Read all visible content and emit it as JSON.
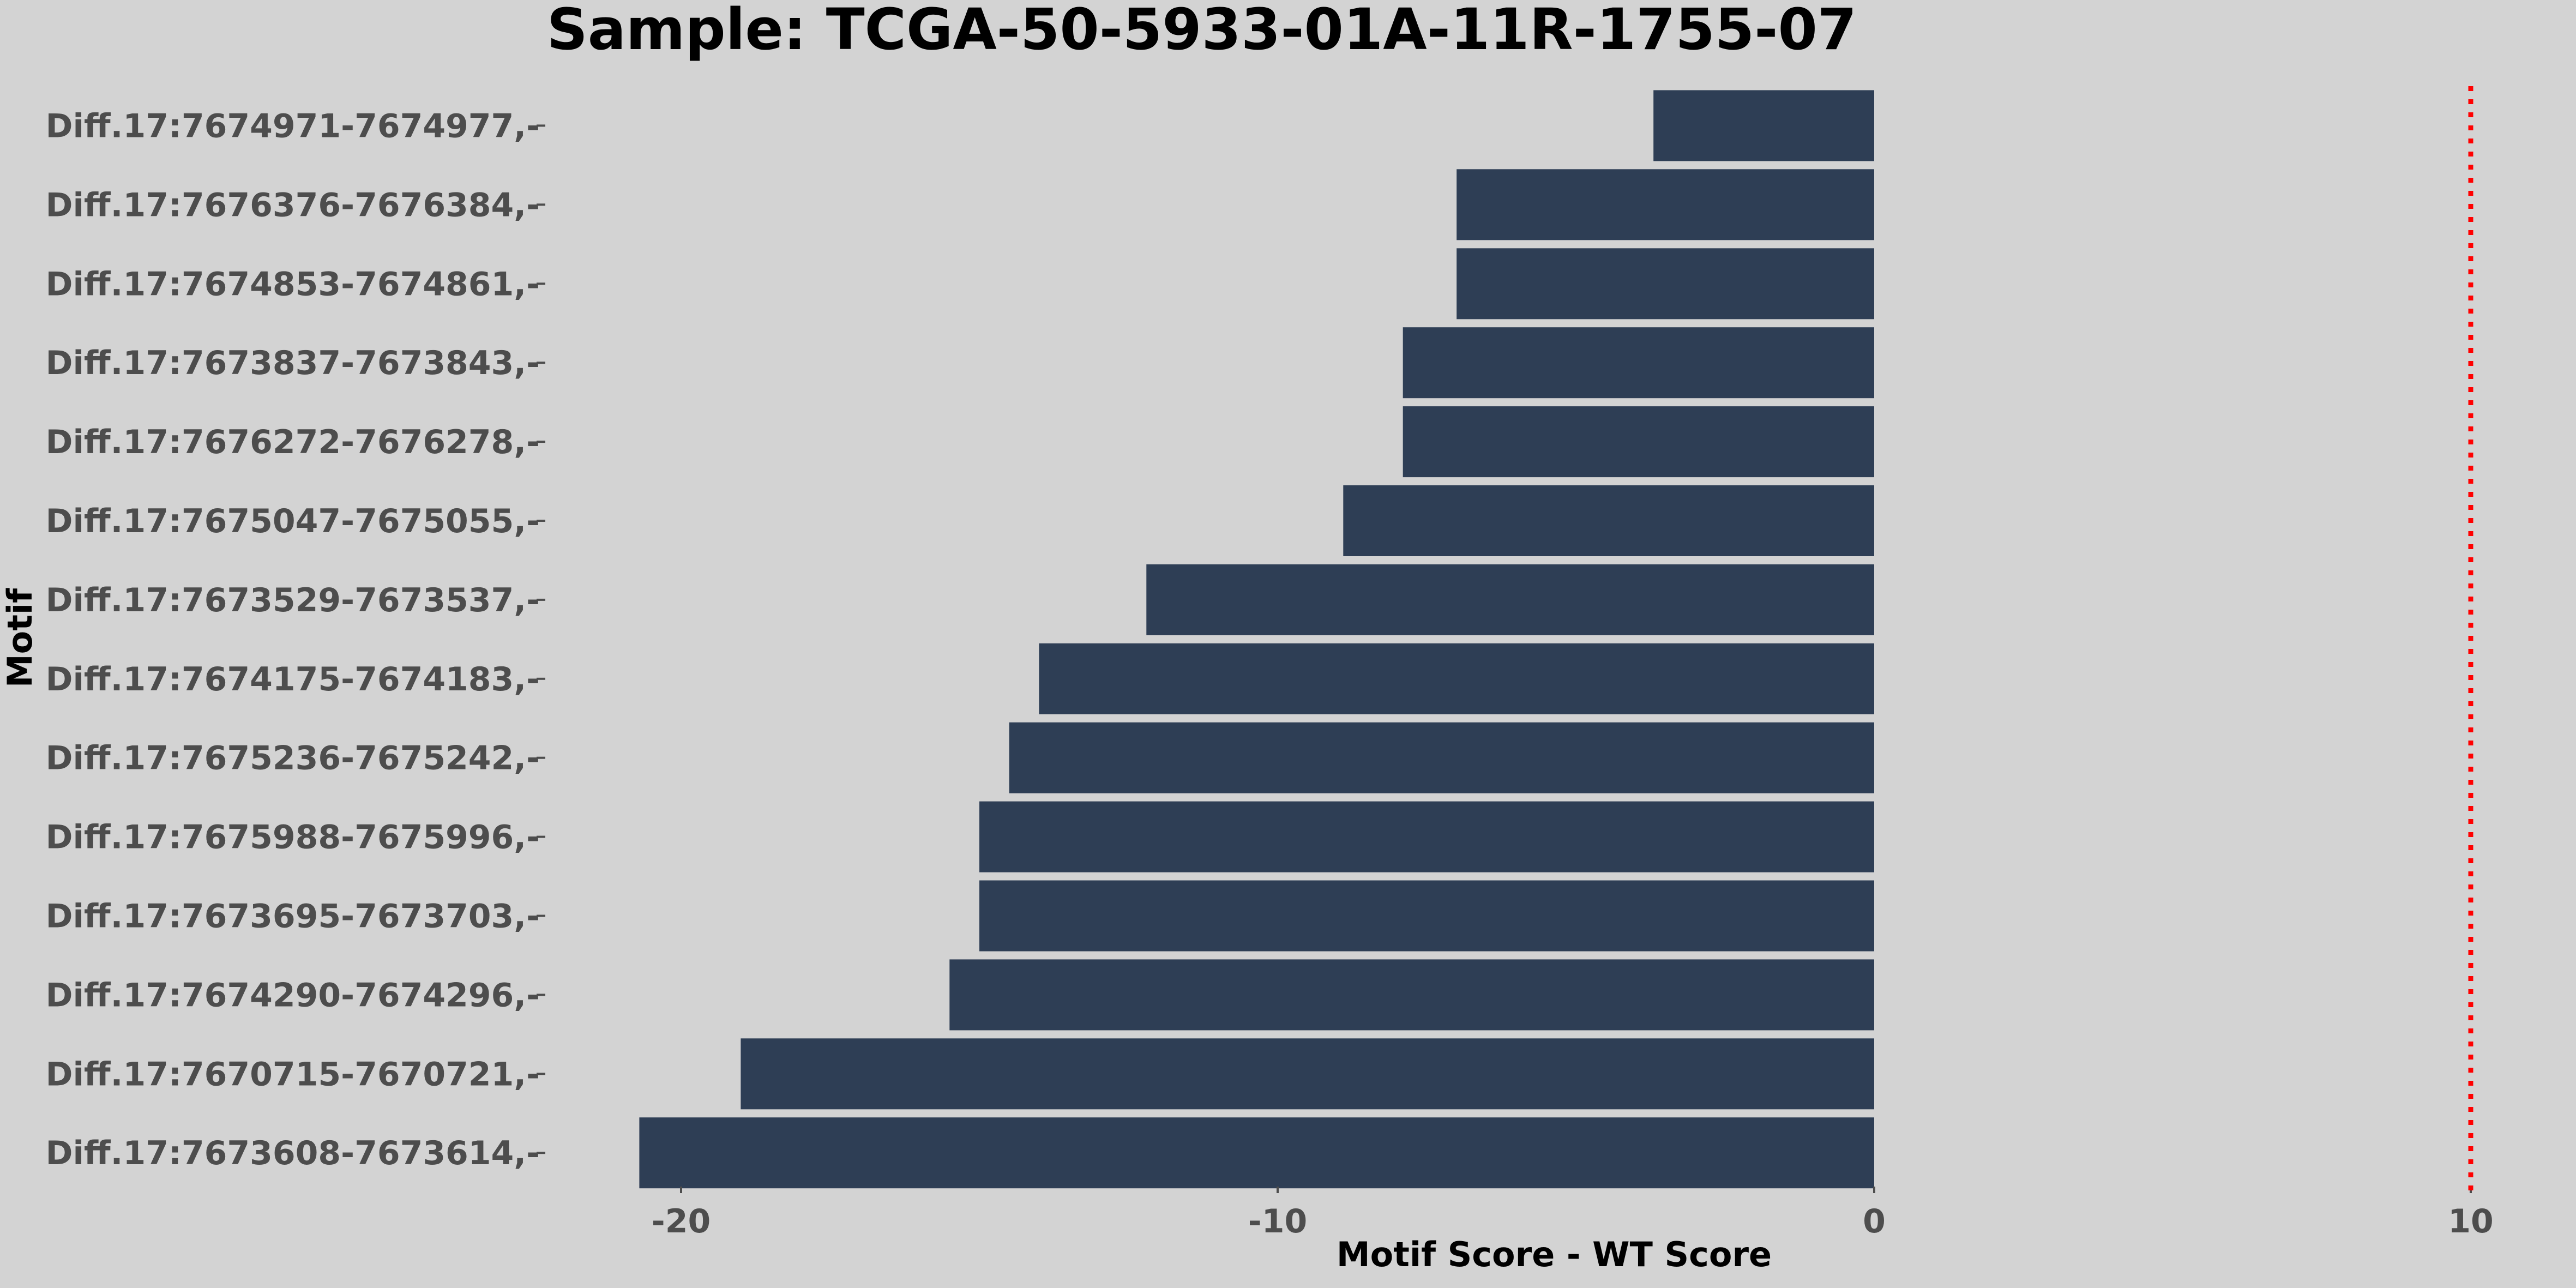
{
  "chart_data": {
    "type": "bar",
    "orientation": "horizontal",
    "title": "Sample: TCGA-50-5933-01A-11R-1755-07",
    "xlabel": "Motif Score - WT Score",
    "ylabel": "Motif",
    "categories": [
      "Diff.17:7674971-7674977,-",
      "Diff.17:7676376-7676384,-",
      "Diff.17:7674853-7674861,-",
      "Diff.17:7673837-7673843,-",
      "Diff.17:7676272-7676278,-",
      "Diff.17:7675047-7675055,-",
      "Diff.17:7673529-7673537,-",
      "Diff.17:7674175-7674183,-",
      "Diff.17:7675236-7675242,-",
      "Diff.17:7675988-7675996,-",
      "Diff.17:7673695-7673703,-",
      "Diff.17:7674290-7674296,-",
      "Diff.17:7670715-7670721,-",
      "Diff.17:7673608-7673614,-"
    ],
    "values": [
      -3.7,
      -7.0,
      -7.0,
      -7.9,
      -7.9,
      -8.9,
      -12.2,
      -14.0,
      -14.5,
      -15.0,
      -15.0,
      -15.5,
      -19.0,
      -20.7
    ],
    "xlim": [
      -31,
      11.5
    ],
    "xticks": [
      -20,
      -10,
      0,
      10
    ],
    "xtick_labels": [
      "-20",
      "-10",
      "0",
      "10"
    ],
    "reference_line": {
      "x": 10,
      "style": "dotted",
      "color": "#ff0000"
    },
    "grid": false,
    "legend": "none",
    "colors": {
      "bar": "#2e3e55",
      "background": "#d3d3d3",
      "tick_label": "#4d4d4d",
      "axis_title": "#000000"
    }
  }
}
